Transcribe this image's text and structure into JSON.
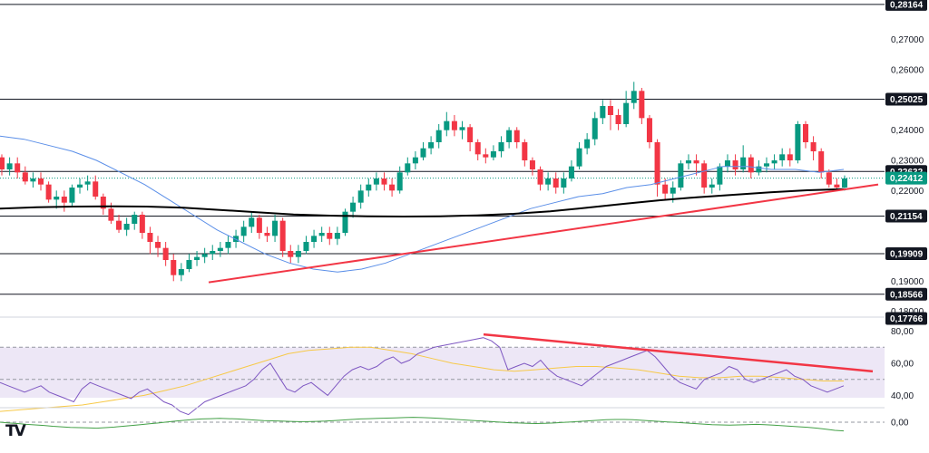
{
  "chart_data": [
    {
      "type": "candlestick",
      "price_axis": {
        "ticks": [
          "0,27000",
          "0,26000",
          "0,24000",
          "0,23000",
          "0,22000",
          "0,19000",
          "0,18000"
        ],
        "ylim": [
          0.1787,
          0.2825
        ]
      },
      "levels": [
        {
          "label": "0,28164",
          "value": 0.28164
        },
        {
          "label": "0,25025",
          "value": 0.25025
        },
        {
          "label": "0,22632",
          "value": 0.22632
        },
        {
          "label": "0,21154",
          "value": 0.21154
        },
        {
          "label": "0,19909",
          "value": 0.19909
        },
        {
          "label": "0,18566",
          "value": 0.18566
        },
        {
          "label": "0,17766",
          "value": 0.17766
        }
      ],
      "current_price": {
        "label": "0,22412",
        "value": 0.22412
      },
      "trendline": {
        "from": [
          0.1896
        ],
        "to": [
          0.222
        ]
      },
      "ma_short": [
        0.238,
        0.237,
        0.235,
        0.233,
        0.23,
        0.226,
        0.222,
        0.217,
        0.212,
        0.207,
        0.203,
        0.199,
        0.196,
        0.194,
        0.193,
        0.194,
        0.196,
        0.199,
        0.202,
        0.205,
        0.208,
        0.211,
        0.214,
        0.216,
        0.218,
        0.219,
        0.221,
        0.222,
        0.224,
        0.226,
        0.228,
        0.228,
        0.227,
        0.227,
        0.226,
        0.227
      ],
      "ma_long": [
        0.214,
        0.2145,
        0.2147,
        0.2148,
        0.2147,
        0.2143,
        0.2136,
        0.2128,
        0.2121,
        0.2117,
        0.2115,
        0.2114,
        0.2115,
        0.2118,
        0.2123,
        0.2131,
        0.2143,
        0.2156,
        0.2168,
        0.2178,
        0.2186,
        0.2194,
        0.2201,
        0.2205
      ],
      "candles": [
        [
          0.231,
          0.227,
          0.232,
          0.225
        ],
        [
          0.227,
          0.229,
          0.231,
          0.225
        ],
        [
          0.229,
          0.226,
          0.231,
          0.224
        ],
        [
          0.226,
          0.223,
          0.228,
          0.222
        ],
        [
          0.223,
          0.224,
          0.226,
          0.221
        ],
        [
          0.224,
          0.222,
          0.226,
          0.22
        ],
        [
          0.222,
          0.217,
          0.223,
          0.216
        ],
        [
          0.217,
          0.218,
          0.22,
          0.214
        ],
        [
          0.218,
          0.216,
          0.22,
          0.213
        ],
        [
          0.216,
          0.221,
          0.222,
          0.215
        ],
        [
          0.221,
          0.222,
          0.224,
          0.219
        ],
        [
          0.222,
          0.223,
          0.225,
          0.22
        ],
        [
          0.223,
          0.218,
          0.225,
          0.217
        ],
        [
          0.218,
          0.214,
          0.219,
          0.212
        ],
        [
          0.214,
          0.21,
          0.216,
          0.209
        ],
        [
          0.21,
          0.207,
          0.212,
          0.206
        ],
        [
          0.207,
          0.209,
          0.211,
          0.205
        ],
        [
          0.209,
          0.212,
          0.213,
          0.207
        ],
        [
          0.212,
          0.206,
          0.213,
          0.204
        ],
        [
          0.206,
          0.203,
          0.208,
          0.199
        ],
        [
          0.203,
          0.201,
          0.205,
          0.198
        ],
        [
          0.201,
          0.197,
          0.203,
          0.195
        ],
        [
          0.197,
          0.192,
          0.199,
          0.19
        ],
        [
          0.192,
          0.194,
          0.196,
          0.19
        ],
        [
          0.194,
          0.197,
          0.199,
          0.193
        ],
        [
          0.197,
          0.198,
          0.2,
          0.195
        ],
        [
          0.198,
          0.199,
          0.201,
          0.196
        ],
        [
          0.199,
          0.2,
          0.202,
          0.197
        ],
        [
          0.2,
          0.201,
          0.203,
          0.198
        ],
        [
          0.201,
          0.203,
          0.205,
          0.199
        ],
        [
          0.203,
          0.205,
          0.207,
          0.201
        ],
        [
          0.205,
          0.208,
          0.21,
          0.203
        ],
        [
          0.208,
          0.211,
          0.213,
          0.206
        ],
        [
          0.211,
          0.206,
          0.212,
          0.204
        ],
        [
          0.206,
          0.205,
          0.208,
          0.203
        ],
        [
          0.205,
          0.21,
          0.212,
          0.203
        ],
        [
          0.21,
          0.2,
          0.211,
          0.198
        ],
        [
          0.2,
          0.198,
          0.202,
          0.196
        ],
        [
          0.198,
          0.2,
          0.202,
          0.196
        ],
        [
          0.2,
          0.203,
          0.205,
          0.199
        ],
        [
          0.203,
          0.205,
          0.207,
          0.201
        ],
        [
          0.205,
          0.206,
          0.208,
          0.203
        ],
        [
          0.206,
          0.204,
          0.208,
          0.202
        ],
        [
          0.204,
          0.206,
          0.208,
          0.202
        ],
        [
          0.206,
          0.213,
          0.214,
          0.205
        ],
        [
          0.213,
          0.216,
          0.218,
          0.211
        ],
        [
          0.216,
          0.22,
          0.222,
          0.214
        ],
        [
          0.22,
          0.222,
          0.224,
          0.218
        ],
        [
          0.222,
          0.224,
          0.226,
          0.22
        ],
        [
          0.224,
          0.222,
          0.226,
          0.22
        ],
        [
          0.222,
          0.22,
          0.224,
          0.218
        ],
        [
          0.22,
          0.226,
          0.228,
          0.219
        ],
        [
          0.226,
          0.229,
          0.231,
          0.225
        ],
        [
          0.229,
          0.231,
          0.233,
          0.227
        ],
        [
          0.231,
          0.234,
          0.236,
          0.23
        ],
        [
          0.234,
          0.236,
          0.238,
          0.232
        ],
        [
          0.236,
          0.24,
          0.242,
          0.234
        ],
        [
          0.24,
          0.243,
          0.246,
          0.238
        ],
        [
          0.243,
          0.24,
          0.245,
          0.238
        ],
        [
          0.24,
          0.241,
          0.243,
          0.237
        ],
        [
          0.241,
          0.236,
          0.242,
          0.233
        ],
        [
          0.236,
          0.232,
          0.237,
          0.23
        ],
        [
          0.232,
          0.231,
          0.234,
          0.229
        ],
        [
          0.231,
          0.233,
          0.235,
          0.23
        ],
        [
          0.233,
          0.236,
          0.238,
          0.231
        ],
        [
          0.236,
          0.24,
          0.241,
          0.234
        ],
        [
          0.24,
          0.236,
          0.241,
          0.234
        ],
        [
          0.236,
          0.23,
          0.237,
          0.228
        ],
        [
          0.23,
          0.227,
          0.231,
          0.225
        ],
        [
          0.227,
          0.222,
          0.228,
          0.22
        ],
        [
          0.222,
          0.224,
          0.226,
          0.22
        ],
        [
          0.224,
          0.221,
          0.226,
          0.219
        ],
        [
          0.221,
          0.224,
          0.226,
          0.219
        ],
        [
          0.224,
          0.228,
          0.23,
          0.223
        ],
        [
          0.228,
          0.234,
          0.236,
          0.227
        ],
        [
          0.234,
          0.237,
          0.239,
          0.232
        ],
        [
          0.237,
          0.244,
          0.246,
          0.235
        ],
        [
          0.244,
          0.248,
          0.25,
          0.242
        ],
        [
          0.248,
          0.245,
          0.25,
          0.24
        ],
        [
          0.245,
          0.242,
          0.247,
          0.24
        ],
        [
          0.242,
          0.249,
          0.253,
          0.241
        ],
        [
          0.249,
          0.253,
          0.256,
          0.247
        ],
        [
          0.253,
          0.244,
          0.254,
          0.242
        ],
        [
          0.244,
          0.236,
          0.245,
          0.234
        ],
        [
          0.236,
          0.222,
          0.237,
          0.218
        ],
        [
          0.222,
          0.219,
          0.224,
          0.217
        ],
        [
          0.219,
          0.221,
          0.223,
          0.216
        ],
        [
          0.221,
          0.229,
          0.23,
          0.22
        ],
        [
          0.229,
          0.23,
          0.232,
          0.227
        ],
        [
          0.23,
          0.229,
          0.232,
          0.225
        ],
        [
          0.229,
          0.221,
          0.23,
          0.219
        ],
        [
          0.221,
          0.222,
          0.224,
          0.219
        ],
        [
          0.222,
          0.228,
          0.229,
          0.22
        ],
        [
          0.228,
          0.23,
          0.232,
          0.226
        ],
        [
          0.23,
          0.227,
          0.232,
          0.225
        ],
        [
          0.227,
          0.231,
          0.235,
          0.226
        ],
        [
          0.231,
          0.226,
          0.232,
          0.224
        ],
        [
          0.226,
          0.228,
          0.23,
          0.225
        ],
        [
          0.228,
          0.229,
          0.231,
          0.226
        ],
        [
          0.229,
          0.23,
          0.232,
          0.227
        ],
        [
          0.23,
          0.232,
          0.234,
          0.228
        ],
        [
          0.232,
          0.23,
          0.234,
          0.228
        ],
        [
          0.23,
          0.242,
          0.243,
          0.229
        ],
        [
          0.242,
          0.236,
          0.243,
          0.234
        ],
        [
          0.236,
          0.233,
          0.238,
          0.23
        ],
        [
          0.233,
          0.226,
          0.234,
          0.224
        ],
        [
          0.226,
          0.222,
          0.227,
          0.221
        ],
        [
          0.222,
          0.221,
          0.224,
          0.22
        ],
        [
          0.221,
          0.224,
          0.225,
          0.22
        ]
      ]
    },
    {
      "type": "line",
      "panel": "rsi",
      "ticks": [
        "80,00",
        "60,00",
        "40,00"
      ],
      "ylim": [
        34,
        86
      ],
      "bands": [
        70,
        50,
        30
      ],
      "rsi": [
        48,
        46,
        44,
        42,
        44,
        46,
        42,
        40,
        38,
        36,
        44,
        48,
        46,
        44,
        42,
        40,
        38,
        42,
        44,
        40,
        36,
        34,
        30,
        28,
        32,
        36,
        38,
        40,
        42,
        44,
        46,
        50,
        56,
        60,
        52,
        44,
        42,
        46,
        48,
        44,
        40,
        46,
        52,
        56,
        58,
        56,
        58,
        62,
        64,
        60,
        62,
        66,
        68,
        70,
        71,
        72,
        73,
        74,
        75,
        76,
        74,
        70,
        56,
        58,
        60,
        58,
        62,
        56,
        52,
        50,
        48,
        46,
        50,
        54,
        58,
        60,
        62,
        64,
        66,
        68,
        64,
        58,
        52,
        48,
        46,
        44,
        50,
        52,
        54,
        58,
        56,
        50,
        48,
        50,
        52,
        54,
        56,
        52,
        50,
        46,
        44,
        42,
        44,
        46
      ],
      "rsi_ma": [
        30,
        31,
        32,
        33,
        34,
        36,
        38,
        40,
        43,
        46,
        50,
        54,
        58,
        62,
        66,
        68,
        69,
        70,
        70,
        68,
        66,
        63,
        60,
        58,
        56,
        55,
        56,
        57,
        58,
        58,
        57,
        56,
        54,
        52,
        51,
        51,
        52,
        52,
        51,
        50,
        49,
        49
      ],
      "divergence_line": {
        "from": 78,
        "to": 55
      }
    },
    {
      "type": "line",
      "panel": "oscillator",
      "ticks": [
        "0,00"
      ],
      "values": [
        0,
        -0.3,
        -0.5,
        -0.8,
        -1.0,
        -1.2,
        -1.5,
        -1.7,
        -1.9,
        -2.0,
        -2.1,
        -2.2,
        -2.0,
        -1.8,
        -1.5,
        -1.2,
        -0.9,
        -0.6,
        -0.3,
        0.1,
        0.4,
        0.7,
        1.0,
        1.2,
        1.3,
        1.4,
        1.3,
        1.2,
        1.0,
        0.8,
        0.6,
        0.5,
        0.4,
        0.3,
        0.2,
        0.2,
        0.3,
        0.4,
        0.6,
        0.8,
        1.0,
        1.2,
        1.3,
        1.4,
        1.5,
        1.6,
        1.7,
        1.8,
        1.7,
        1.6,
        1.4,
        1.2,
        1.0,
        0.8,
        0.6,
        0.4,
        0.2,
        0.0,
        -0.2,
        -0.3,
        -0.4,
        -0.5,
        -0.4,
        -0.3,
        -0.1,
        0.1,
        0.3,
        0.5,
        0.7,
        0.9,
        1.0,
        1.0,
        0.9,
        0.7,
        0.5,
        0.3,
        0.1,
        -0.1,
        -0.3,
        -0.5,
        -0.7,
        -0.9,
        -1.0,
        -1.1,
        -1.0,
        -0.9,
        -0.8,
        -0.9,
        -1.1,
        -1.3,
        -1.5,
        -1.7,
        -1.9,
        -2.2,
        -2.6,
        -3.0,
        -3.2
      ]
    }
  ],
  "colors": {
    "up": "#089981",
    "down": "#f23645",
    "trendline": "#f23645",
    "ma_short": "#5b8fe8",
    "ma_long": "#000000",
    "rsi": "#7e57c2",
    "rsi_ma": "#f7c948",
    "rsi_band": "#ede7f6",
    "oscillator": "#43a047",
    "level_tag": "#131722",
    "current_tag": "#089981"
  },
  "watermark": "TV"
}
